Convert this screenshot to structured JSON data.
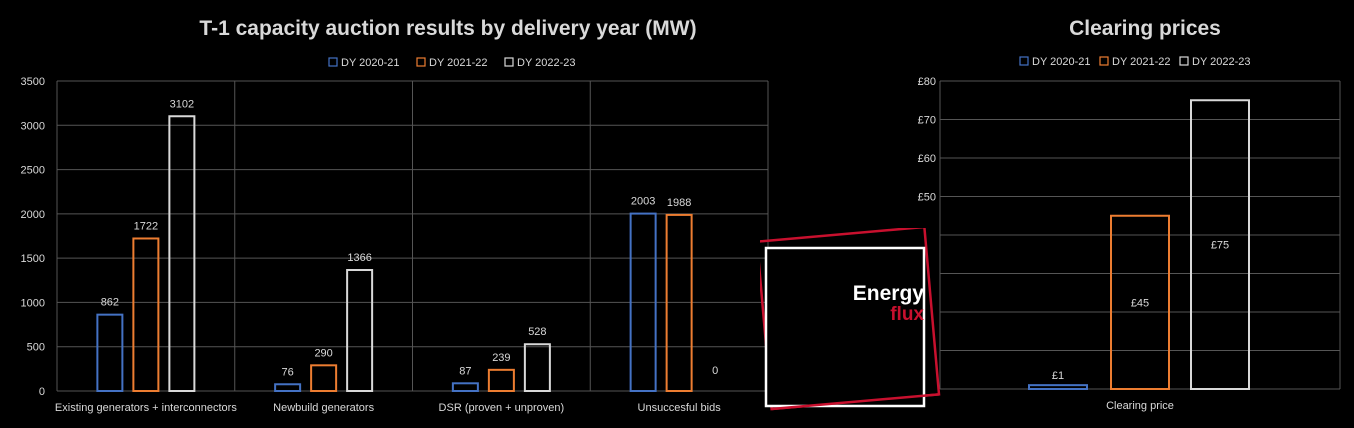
{
  "chart_data": [
    {
      "type": "bar",
      "title": "T-1 capacity auction results by delivery year (MW)",
      "categories": [
        "Existing generators + interconnectors",
        "Newbuild generators",
        "DSR (proven + unproven)",
        "Unsuccesful bids"
      ],
      "series": [
        {
          "name": "DY 2020-21",
          "values": [
            862,
            76,
            87,
            2003
          ]
        },
        {
          "name": "DY 2021-22",
          "values": [
            1722,
            290,
            239,
            1988
          ]
        },
        {
          "name": "DY 2022-23",
          "values": [
            3102,
            1366,
            528,
            0
          ]
        }
      ],
      "ylim": [
        0,
        3500
      ],
      "yticks": [
        0,
        500,
        1000,
        1500,
        2000,
        2500,
        3000,
        3500
      ],
      "grid": true,
      "legend": "top"
    },
    {
      "type": "bar",
      "title": "Clearing prices",
      "categories": [
        "Clearing price"
      ],
      "series": [
        {
          "name": "DY 2020-21",
          "values": [
            1
          ],
          "label": "£1"
        },
        {
          "name": "DY 2021-22",
          "values": [
            45
          ],
          "label": "£45"
        },
        {
          "name": "DY 2022-23",
          "values": [
            75
          ],
          "label": "£75"
        }
      ],
      "ylim": [
        0,
        80
      ],
      "yticks": [
        "£80",
        "£70",
        "£60",
        "£50"
      ],
      "grid": true,
      "legend": "top"
    }
  ],
  "colors": {
    "DY 2020-21": "#4472c4",
    "DY 2021-22": "#ed7d31",
    "DY 2022-23": "#d9d9d9",
    "grid": "#555555",
    "text": "#d9d9d9"
  },
  "logo": {
    "line1": "Energy",
    "line2": "flux",
    "accent": "#c8102e"
  }
}
